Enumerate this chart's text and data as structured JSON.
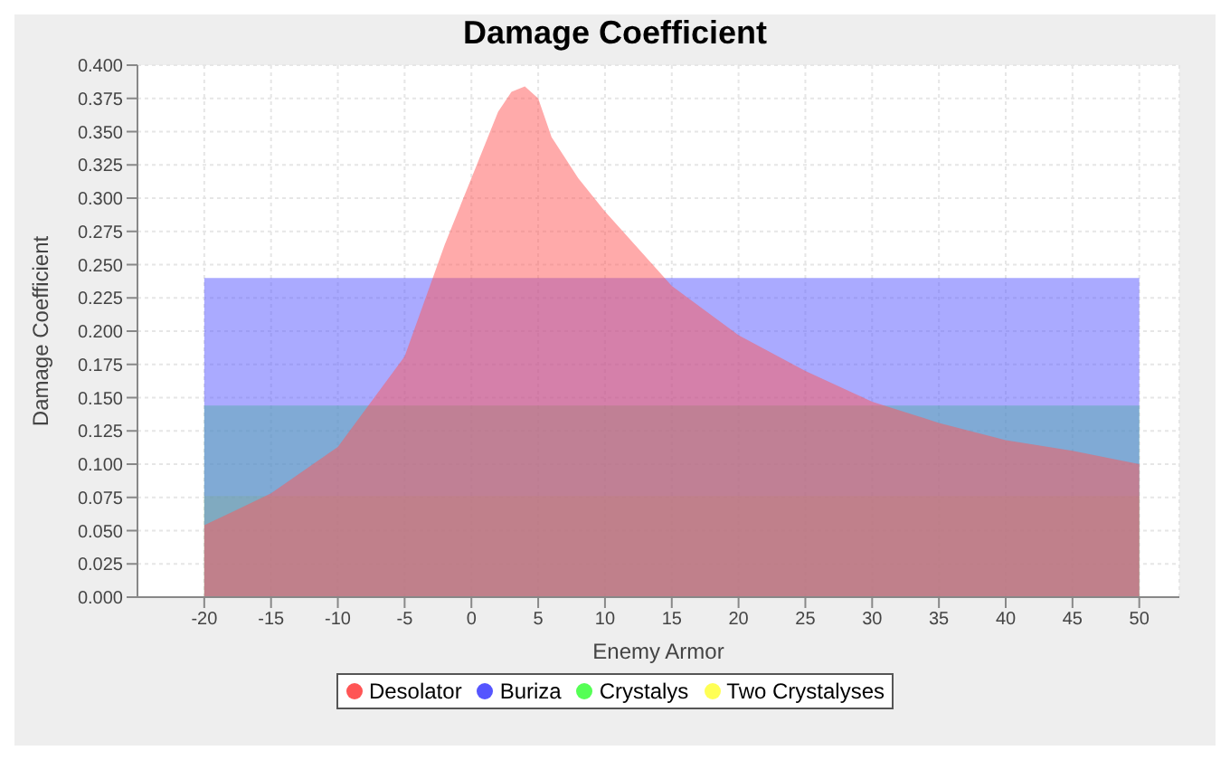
{
  "chart_data": {
    "type": "area",
    "title": "Damage Coefficient",
    "xlabel": "Enemy Armor",
    "ylabel": "Damage Coefficient",
    "xlim": [
      -25,
      53
    ],
    "ylim": [
      0,
      0.4
    ],
    "xticks": [
      -20,
      -15,
      -10,
      -5,
      0,
      5,
      10,
      15,
      20,
      25,
      30,
      35,
      40,
      45,
      50
    ],
    "yticks": [
      {
        "value": 0,
        "label": "0.000"
      },
      {
        "value": 0.025,
        "label": "0.025"
      },
      {
        "value": 0.05,
        "label": "0.050"
      },
      {
        "value": 0.075,
        "label": "0.075"
      },
      {
        "value": 0.1,
        "label": "0.100"
      },
      {
        "value": 0.125,
        "label": "0.125"
      },
      {
        "value": 0.15,
        "label": "0.150"
      },
      {
        "value": 0.175,
        "label": "0.175"
      },
      {
        "value": 0.2,
        "label": "0.200"
      },
      {
        "value": 0.225,
        "label": "0.225"
      },
      {
        "value": 0.25,
        "label": "0.250"
      },
      {
        "value": 0.275,
        "label": "0.275"
      },
      {
        "value": 0.3,
        "label": "0.300"
      },
      {
        "value": 0.325,
        "label": "0.325"
      },
      {
        "value": 0.35,
        "label": "0.350"
      },
      {
        "value": 0.375,
        "label": "0.375"
      },
      {
        "value": 0.4,
        "label": "0.400"
      }
    ],
    "grid": true,
    "legend": "bottom",
    "series": [
      {
        "name": "Desolator",
        "color": "#ff5555",
        "x": [
          -20,
          -15,
          -10,
          -5,
          -2,
          0,
          2,
          3,
          4,
          5,
          6,
          8,
          10,
          15,
          20,
          25,
          30,
          35,
          40,
          45,
          50
        ],
        "values": [
          0.054,
          0.078,
          0.113,
          0.181,
          0.265,
          0.315,
          0.365,
          0.38,
          0.384,
          0.375,
          0.346,
          0.315,
          0.29,
          0.234,
          0.197,
          0.17,
          0.147,
          0.131,
          0.118,
          0.11,
          0.1
        ]
      },
      {
        "name": "Buriza",
        "color": "#5555ff",
        "x": [
          -20,
          50
        ],
        "values": [
          0.24,
          0.24
        ]
      },
      {
        "name": "Crystalys",
        "color": "#55ff55",
        "x": [
          -20,
          50
        ],
        "values": [
          0.144,
          0.144
        ]
      },
      {
        "name": "Two Crystalyses",
        "color": "#ffff55",
        "x": [
          -20,
          50
        ],
        "values": [
          0.076,
          0.076
        ]
      }
    ]
  }
}
